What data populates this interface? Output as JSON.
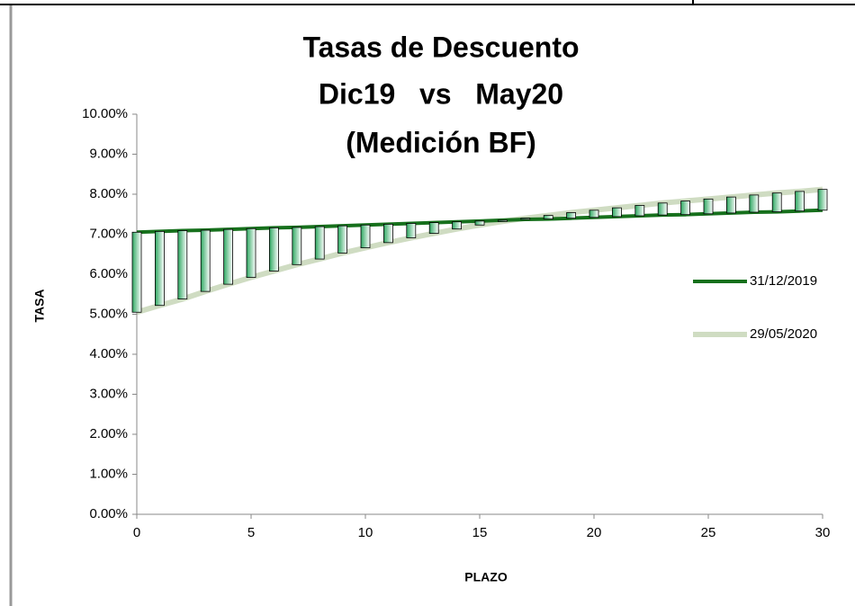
{
  "chart_data": {
    "type": "line",
    "title": [
      "Tasas de Descuento",
      "Dic19   vs   May20",
      "(Medición BF)"
    ],
    "x_label": "PLAZO",
    "y_label": "TASA",
    "x": [
      0,
      1,
      2,
      3,
      4,
      5,
      6,
      7,
      8,
      9,
      10,
      11,
      12,
      13,
      14,
      15,
      16,
      17,
      18,
      19,
      20,
      21,
      22,
      23,
      24,
      25,
      26,
      27,
      28,
      29,
      30
    ],
    "series": [
      {
        "name": "31/12/2019",
        "color": "#16701c",
        "values": [
          7.05,
          7.07,
          7.09,
          7.1,
          7.12,
          7.14,
          7.16,
          7.17,
          7.19,
          7.21,
          7.23,
          7.25,
          7.27,
          7.29,
          7.31,
          7.33,
          7.35,
          7.37,
          7.38,
          7.4,
          7.42,
          7.44,
          7.46,
          7.48,
          7.49,
          7.51,
          7.53,
          7.55,
          7.56,
          7.58,
          7.6
        ]
      },
      {
        "name": "29/05/2020",
        "color": "#cfdcc2",
        "values": [
          5.05,
          5.22,
          5.38,
          5.57,
          5.75,
          5.92,
          6.08,
          6.24,
          6.38,
          6.53,
          6.66,
          6.79,
          6.91,
          7.02,
          7.13,
          7.23,
          7.32,
          7.4,
          7.47,
          7.54,
          7.6,
          7.66,
          7.72,
          7.78,
          7.83,
          7.88,
          7.93,
          7.98,
          8.03,
          8.07,
          8.12
        ]
      }
    ],
    "up_down_bars": true,
    "bar_color": "#2fa862",
    "xlim": [
      0,
      30
    ],
    "xticks": [
      0,
      5,
      10,
      15,
      20,
      25,
      30
    ],
    "ylim": [
      0,
      10
    ],
    "yticks": [
      {
        "value": 0,
        "label": "0.00%"
      },
      {
        "value": 1,
        "label": "1.00%"
      },
      {
        "value": 2,
        "label": "2.00%"
      },
      {
        "value": 3,
        "label": "3.00%"
      },
      {
        "value": 4,
        "label": "4.00%"
      },
      {
        "value": 5,
        "label": "5.00%"
      },
      {
        "value": 6,
        "label": "6.00%"
      },
      {
        "value": 7,
        "label": "7.00%"
      },
      {
        "value": 8,
        "label": "8.00%"
      },
      {
        "value": 9,
        "label": "9.00%"
      },
      {
        "value": 10,
        "label": "10.00%"
      }
    ],
    "grid": false,
    "legend": "right"
  }
}
